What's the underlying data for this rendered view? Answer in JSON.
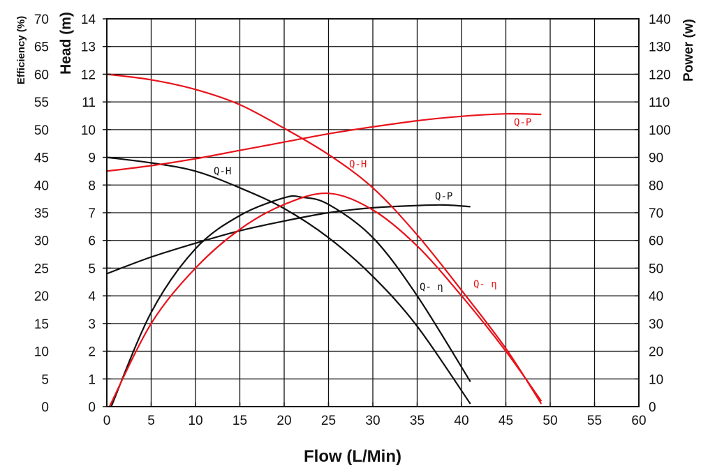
{
  "chart_data": {
    "type": "line",
    "title": "",
    "xlabel": "Flow  (L/Min)",
    "xlim": [
      0,
      60
    ],
    "x_ticks": [
      "0",
      "5",
      "10",
      "15",
      "20",
      "25",
      "30",
      "35",
      "40",
      "45",
      "50",
      "55",
      "60"
    ],
    "grid": true,
    "axes": {
      "efficiency": {
        "label": "Efficiency (%)",
        "range": [
          0,
          70
        ],
        "ticks": [
          "0",
          "5",
          "10",
          "15",
          "20",
          "25",
          "30",
          "35",
          "40",
          "45",
          "50",
          "55",
          "60",
          "65",
          "70"
        ]
      },
      "head": {
        "label": "Head (m)",
        "range": [
          0,
          14
        ],
        "ticks": [
          "0",
          "1",
          "2",
          "3",
          "4",
          "5",
          "6",
          "7",
          "8",
          "9",
          "10",
          "11",
          "12",
          "13",
          "14"
        ]
      },
      "power": {
        "label": "Power (w)",
        "range": [
          0,
          140
        ],
        "ticks": [
          "0",
          "10",
          "20",
          "30",
          "40",
          "50",
          "60",
          "70",
          "80",
          "90",
          "100",
          "110",
          "120",
          "130",
          "140"
        ]
      }
    },
    "series": [
      {
        "name": "Q-H",
        "color": "#111111",
        "axis": "head",
        "x": [
          0,
          5,
          10,
          15,
          20,
          25,
          30,
          35,
          41
        ],
        "y": [
          9.0,
          8.8,
          8.5,
          7.9,
          7.15,
          6.1,
          4.7,
          2.9,
          0.1
        ]
      },
      {
        "name": "Q-P",
        "color": "#111111",
        "axis": "power",
        "x": [
          0,
          5,
          10,
          15,
          20,
          25,
          30,
          35,
          38,
          41
        ],
        "y": [
          48,
          54,
          59,
          63.5,
          67,
          70,
          71.8,
          72.6,
          72.8,
          72.2
        ]
      },
      {
        "name": "Q- η",
        "color": "#111111",
        "axis": "efficiency",
        "x": [
          0.5,
          5,
          10,
          15,
          20,
          22,
          25,
          30,
          35,
          41
        ],
        "y": [
          0,
          17,
          28.5,
          34.5,
          37.7,
          37.8,
          36.5,
          30.5,
          20,
          4.5
        ]
      },
      {
        "name": "Q-H",
        "color": "#e8131b",
        "axis": "head",
        "x": [
          0,
          5,
          10,
          15,
          20,
          25,
          30,
          35,
          40,
          45,
          49
        ],
        "y": [
          12.0,
          11.8,
          11.45,
          10.9,
          10.05,
          9.1,
          7.9,
          6.2,
          4.2,
          2.1,
          0.1
        ]
      },
      {
        "name": "Q-P",
        "color": "#e8131b",
        "axis": "power",
        "x": [
          0,
          5,
          10,
          15,
          20,
          25,
          30,
          35,
          40,
          45,
          49
        ],
        "y": [
          85,
          87,
          89.5,
          92.5,
          95.5,
          98.5,
          101,
          103.2,
          104.8,
          105.7,
          105.5
        ]
      },
      {
        "name": "Q- η",
        "color": "#e8131b",
        "axis": "efficiency",
        "x": [
          0.3,
          5,
          10,
          15,
          20,
          25,
          30,
          35,
          40,
          45,
          49
        ],
        "y": [
          0,
          15,
          25,
          32,
          36.5,
          38.5,
          35.5,
          29,
          20,
          10,
          1
        ]
      }
    ]
  }
}
